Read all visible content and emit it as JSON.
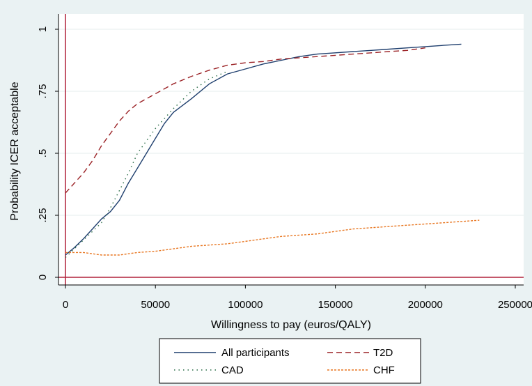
{
  "chart_data": {
    "type": "line",
    "xlabel": "Willingness to pay (euros/QALY)",
    "ylabel": "Probability ICER acceptable",
    "xlim": [
      0,
      250000
    ],
    "ylim": [
      0,
      1
    ],
    "x_ticks": [
      0,
      50000,
      100000,
      150000,
      200000,
      250000
    ],
    "x_tick_labels": [
      "0",
      "50000",
      "100000",
      "150000",
      "200000",
      "250000"
    ],
    "y_ticks": [
      0,
      0.25,
      0.5,
      0.75,
      1
    ],
    "y_tick_labels": [
      "0",
      ".25",
      ".5",
      ".75",
      "1"
    ],
    "grid": true,
    "legend_position": "bottom",
    "reference_lines": {
      "x": 0,
      "y": 0,
      "color": "#b0203a"
    },
    "series": [
      {
        "name": "All participants",
        "color": "#1f3f6e",
        "dash": "solid",
        "x": [
          0,
          5000,
          10000,
          15000,
          20000,
          25000,
          30000,
          35000,
          40000,
          45000,
          50000,
          55000,
          60000,
          70000,
          80000,
          90000,
          100000,
          110000,
          120000,
          130000,
          140000,
          150000,
          160000,
          170000,
          180000,
          190000,
          200000,
          210000,
          220000
        ],
        "values": [
          0.09,
          0.12,
          0.155,
          0.195,
          0.235,
          0.265,
          0.31,
          0.38,
          0.44,
          0.5,
          0.56,
          0.62,
          0.665,
          0.72,
          0.78,
          0.82,
          0.84,
          0.86,
          0.875,
          0.89,
          0.9,
          0.905,
          0.91,
          0.915,
          0.92,
          0.925,
          0.93,
          0.935,
          0.94
        ]
      },
      {
        "name": "T2D",
        "color": "#9b2226",
        "dash": "long",
        "x": [
          0,
          5000,
          10000,
          15000,
          20000,
          25000,
          30000,
          35000,
          40000,
          45000,
          50000,
          60000,
          70000,
          80000,
          90000,
          100000,
          110000,
          120000,
          130000,
          140000,
          150000,
          160000,
          170000,
          180000,
          190000,
          200000
        ],
        "values": [
          0.34,
          0.38,
          0.42,
          0.47,
          0.53,
          0.58,
          0.63,
          0.67,
          0.7,
          0.72,
          0.74,
          0.78,
          0.81,
          0.835,
          0.855,
          0.865,
          0.87,
          0.88,
          0.885,
          0.89,
          0.895,
          0.9,
          0.905,
          0.91,
          0.915,
          0.925
        ]
      },
      {
        "name": "CAD",
        "color": "#2c6e49",
        "dash": "dot",
        "x": [
          0,
          10000,
          20000,
          25000,
          30000,
          35000,
          40000,
          50000,
          60000,
          70000,
          80000,
          90000
        ],
        "values": [
          0.08,
          0.15,
          0.22,
          0.28,
          0.35,
          0.42,
          0.5,
          0.6,
          0.68,
          0.75,
          0.8,
          0.83
        ]
      },
      {
        "name": "CHF",
        "color": "#e87722",
        "dash": "short",
        "x": [
          0,
          10000,
          20000,
          30000,
          40000,
          50000,
          60000,
          70000,
          80000,
          90000,
          100000,
          110000,
          120000,
          130000,
          140000,
          150000,
          160000,
          170000,
          180000,
          190000,
          200000,
          210000,
          220000,
          230000
        ],
        "values": [
          0.1,
          0.1,
          0.09,
          0.09,
          0.1,
          0.105,
          0.115,
          0.125,
          0.13,
          0.135,
          0.145,
          0.155,
          0.165,
          0.17,
          0.175,
          0.185,
          0.195,
          0.2,
          0.205,
          0.21,
          0.215,
          0.22,
          0.225,
          0.23
        ]
      }
    ]
  }
}
